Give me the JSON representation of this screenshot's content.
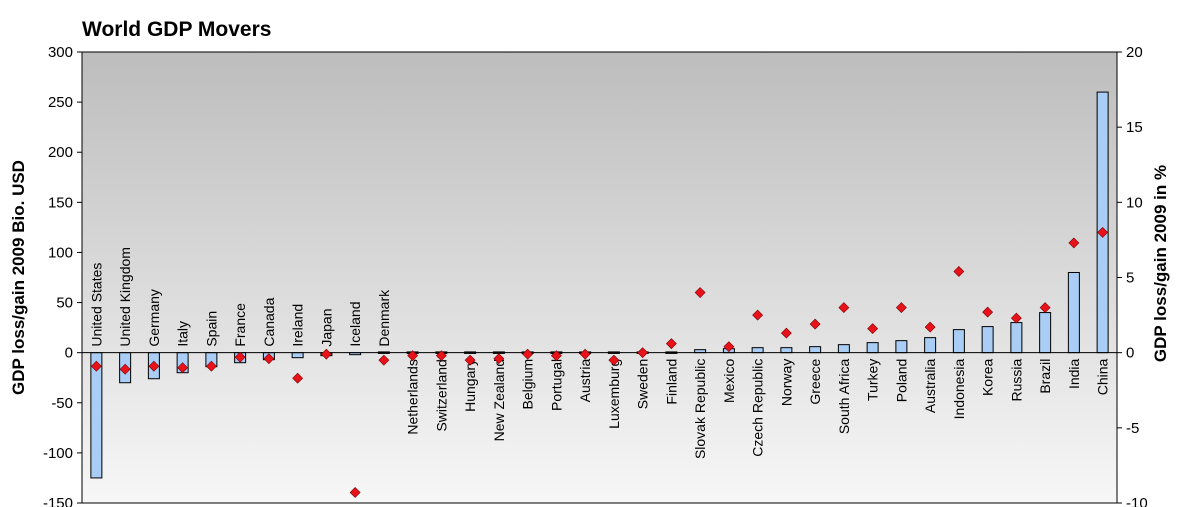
{
  "chart_data": {
    "type": "bar",
    "title": "World GDP Movers",
    "ylabel": "GDP loss/gain 2009 Bio. USD",
    "y2label": "GDP loss/gain 2009 in %",
    "ylim": [
      -150,
      300
    ],
    "y2lim": [
      -10,
      20
    ],
    "yticks": [
      "300",
      "250",
      "200",
      "150",
      "100",
      "50",
      "0",
      "-50",
      "-100",
      "-150"
    ],
    "y2ticks": [
      "20",
      "15",
      "10",
      "5",
      "0",
      "-5",
      "-10"
    ],
    "grid": false,
    "legend": "none",
    "colors": {
      "bars": "#a9cdf5",
      "markers": "#e8121b",
      "plot_top": "#bdbdbd",
      "plot_bottom": "#f7f7f7"
    },
    "categories": [
      "United States",
      "United Kingdom",
      "Germany",
      "Italy",
      "Spain",
      "France",
      "Canada",
      "Ireland",
      "Japan",
      "Iceland",
      "Denmark",
      "Netherlands",
      "Switzerland",
      "Hungary",
      "New Zealand",
      "Belgium",
      "Portugal",
      "Austria",
      "Luxemburg",
      "Sweden",
      "Finland",
      "Slovak Republic",
      "Mexico",
      "Czech Republic",
      "Norway",
      "Greece",
      "South Africa",
      "Turkey",
      "Poland",
      "Australia",
      "Indonesia",
      "Korea",
      "Russia",
      "Brazil",
      "India",
      "China"
    ],
    "series": [
      {
        "axis": "left",
        "kind": "bar",
        "values": [
          -125,
          -30,
          -26,
          -20,
          -14,
          -10,
          -7,
          -5,
          -3,
          -2,
          -1,
          -0.5,
          -0.5,
          -0.3,
          -0.2,
          -0.2,
          -0.2,
          -0.1,
          -0.1,
          0,
          1,
          3,
          4,
          5,
          5,
          6,
          8,
          10,
          12,
          15,
          23,
          26,
          30,
          40,
          80,
          260
        ]
      },
      {
        "axis": "right",
        "kind": "scatter",
        "values": [
          -0.9,
          -1.1,
          -0.9,
          -1.0,
          -0.9,
          -0.3,
          -0.4,
          -1.7,
          -0.1,
          -9.3,
          -0.5,
          -0.2,
          -0.2,
          -0.5,
          -0.4,
          -0.1,
          -0.2,
          -0.1,
          -0.5,
          0.0,
          0.6,
          4.0,
          0.4,
          2.5,
          1.3,
          1.9,
          3.0,
          1.6,
          3.0,
          1.7,
          5.4,
          2.7,
          2.3,
          3.0,
          7.3,
          8.0
        ]
      }
    ]
  }
}
